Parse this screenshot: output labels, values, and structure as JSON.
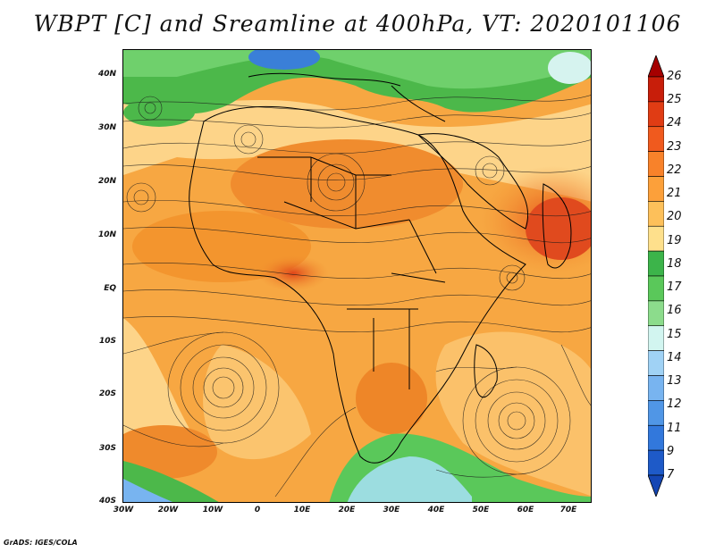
{
  "title": "WBPT [C] and Sreamline at 400hPa, VT: 2020101106",
  "y_axis_labels": [
    "40N",
    "30N",
    "20N",
    "10N",
    "EQ",
    "10S",
    "20S",
    "30S",
    "40S"
  ],
  "x_axis_labels": [
    "30W",
    "20W",
    "10W",
    "0",
    "10E",
    "20E",
    "30E",
    "40E",
    "50E",
    "60E",
    "70E"
  ],
  "colorbar": {
    "labels": [
      "26",
      "25",
      "24",
      "23",
      "22",
      "21",
      "20",
      "19",
      "18",
      "17",
      "16",
      "15",
      "14",
      "13",
      "12",
      "11",
      "9",
      "7"
    ],
    "colors": [
      "#a50000",
      "#c81e0a",
      "#e03c14",
      "#f05a1e",
      "#f8822a",
      "#fca03a",
      "#fdc05a",
      "#fee08c",
      "#3cb44a",
      "#5ac85a",
      "#8cdc8c",
      "#d2f5f0",
      "#a0d2f5",
      "#78b4f0",
      "#5096e6",
      "#3278dc",
      "#1e5ac8",
      "#1446b4"
    ]
  },
  "map": {
    "lon_range": [
      -30,
      75
    ],
    "lat_range": [
      -40,
      45
    ]
  },
  "credit": "GrADS: IGES/COLA"
}
